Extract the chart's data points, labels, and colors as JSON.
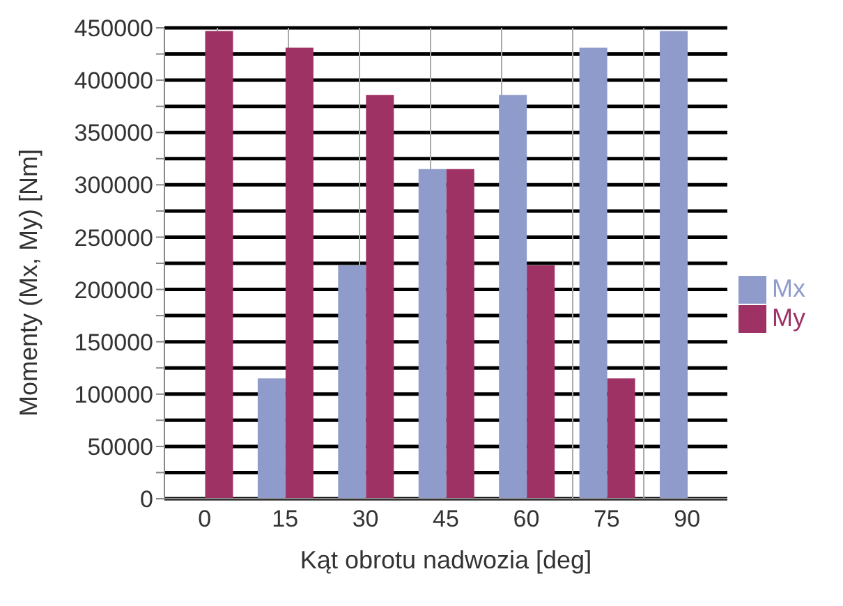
{
  "chart_data": {
    "type": "bar",
    "xlabel": "Kąt obrotu nadwozia [deg]",
    "ylabel": "Momenty (Mx, My) [Nm]",
    "categories": [
      "0",
      "15",
      "30",
      "45",
      "60",
      "75",
      "90"
    ],
    "series": [
      {
        "name": "Mx",
        "color": "#8f9bcb",
        "values": [
          0,
          115000,
          223000,
          315000,
          386000,
          431000,
          447000
        ]
      },
      {
        "name": "My",
        "color": "#9e3265",
        "values": [
          447000,
          431000,
          386000,
          315000,
          223000,
          115000,
          0
        ]
      }
    ],
    "ylim": [
      0,
      450000
    ],
    "yticks": [
      0,
      {
        "value": 25000,
        "label": null
      },
      50000,
      {
        "value": 75000,
        "label": null
      },
      100000,
      {
        "value": 125000,
        "label": null
      },
      150000,
      {
        "value": 175000,
        "label": null
      },
      200000,
      {
        "value": 225000,
        "label": null
      },
      250000,
      {
        "value": 275000,
        "label": null
      },
      300000,
      {
        "value": 325000,
        "label": null
      },
      350000,
      {
        "value": 375000,
        "label": null
      },
      400000,
      {
        "value": 425000,
        "label": null
      },
      450000
    ],
    "grid": true,
    "legend": "right"
  }
}
